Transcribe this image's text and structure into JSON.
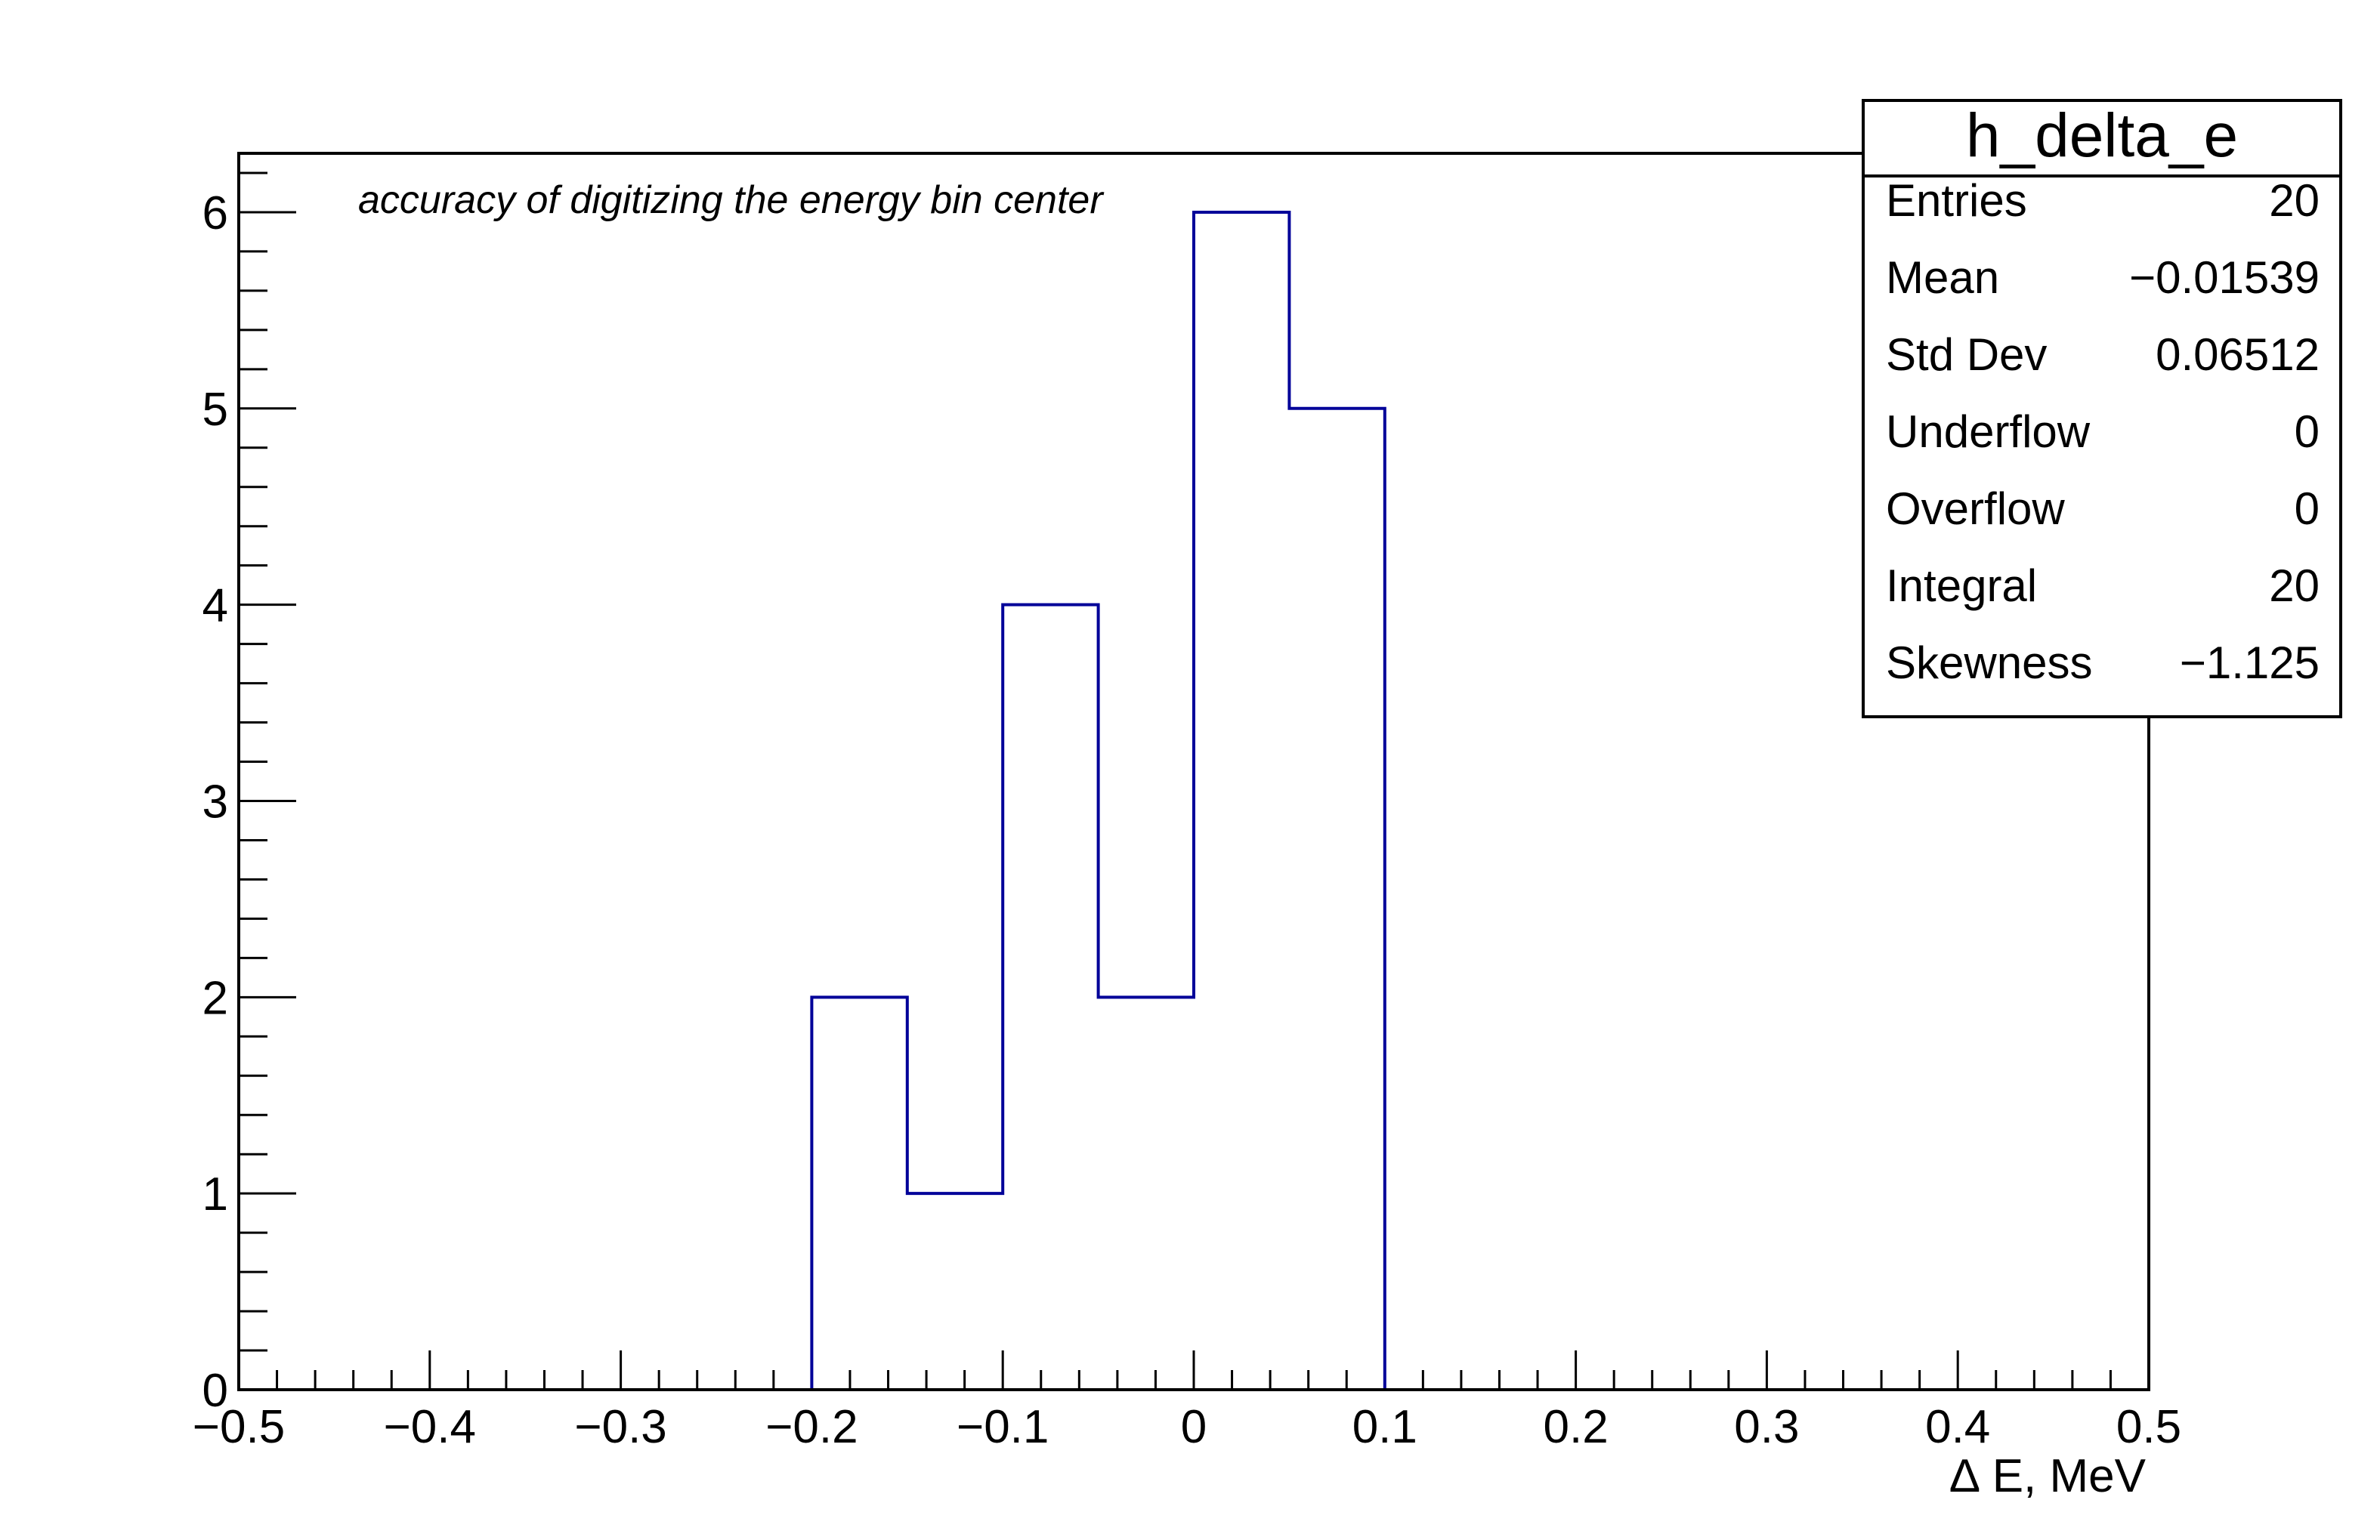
{
  "chart_data": {
    "type": "bar",
    "histogram": true,
    "bin_edges": [
      -0.2,
      -0.15,
      -0.1,
      -0.05,
      0.0,
      0.05,
      0.1
    ],
    "values": [
      2,
      1,
      4,
      2,
      6,
      5
    ],
    "xlim": [
      -0.5,
      0.5
    ],
    "ylim": [
      0,
      6.3
    ],
    "xticks": [
      "−0.5",
      "−0.4",
      "−0.3",
      "−0.2",
      "−0.1",
      "0",
      "0.1",
      "0.2",
      "0.3",
      "0.4",
      "0.5"
    ],
    "yticks": [
      "0",
      "1",
      "2",
      "3",
      "4",
      "5",
      "6"
    ],
    "xlabel": "∆ E, MeV",
    "ylabel": "",
    "annotation": "accuracy of digitizing the energy bin center",
    "line_color": "#000099",
    "stats": {
      "title": "h_delta_e",
      "rows": [
        {
          "label": "Entries",
          "value": "20"
        },
        {
          "label": "Mean",
          "value": "−0.01539"
        },
        {
          "label": "Std Dev",
          "value": "0.06512"
        },
        {
          "label": "Underflow",
          "value": "0"
        },
        {
          "label": "Overflow",
          "value": "0"
        },
        {
          "label": "Integral",
          "value": "20"
        },
        {
          "label": "Skewness",
          "value": "−1.125"
        }
      ]
    }
  }
}
